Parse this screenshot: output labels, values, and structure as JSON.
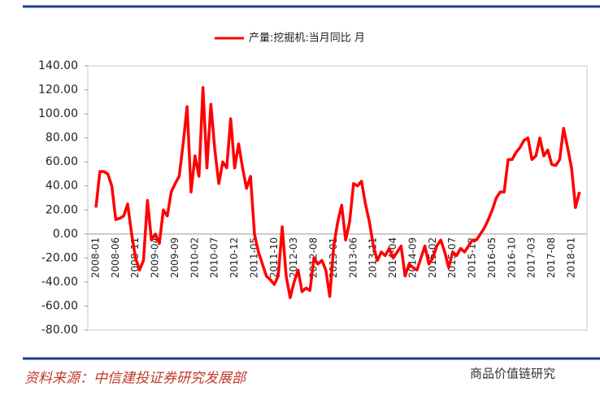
{
  "chart_data": {
    "type": "line",
    "legend": "产量:挖掘机:当月同比 月",
    "source": "资料来源：中信建投证券研究发展部",
    "watermark": "商品价值链研究",
    "color": "#ff0000",
    "categories": [
      "2008-01",
      null,
      null,
      null,
      null,
      "2008-06",
      null,
      null,
      null,
      null,
      "2008-11",
      null,
      null,
      null,
      null,
      "2009-04",
      null,
      null,
      null,
      null,
      "2009-09",
      null,
      null,
      null,
      null,
      "2010-02",
      null,
      null,
      null,
      null,
      "2010-07",
      null,
      null,
      null,
      null,
      "2010-12",
      null,
      null,
      null,
      null,
      "2011-05",
      null,
      null,
      null,
      null,
      "2011-10",
      null,
      null,
      null,
      null,
      "2012-03",
      null,
      null,
      null,
      null,
      "2012-08",
      null,
      null,
      null,
      null,
      "2013-01",
      null,
      null,
      null,
      null,
      "2013-06",
      null,
      null,
      null,
      null,
      "2013-11",
      null,
      null,
      null,
      null,
      "2014-04",
      null,
      null,
      null,
      null,
      "2014-09",
      null,
      null,
      null,
      null,
      "2015-02",
      null,
      null,
      null,
      null,
      "2015-07",
      null,
      null,
      null,
      null,
      "2015-12",
      null,
      null,
      null,
      null,
      "2016-05",
      null,
      null,
      null,
      null,
      "2016-10",
      null,
      null,
      null,
      null,
      "2017-03",
      null,
      null,
      null,
      null,
      "2017-08",
      null,
      null,
      null,
      null,
      "2018-01",
      null,
      null
    ],
    "values": [
      22,
      52,
      52,
      50,
      40,
      12,
      13,
      15,
      25,
      0,
      -20,
      -30,
      -22,
      28,
      -5,
      0,
      -8,
      20,
      15,
      35,
      42,
      48,
      75,
      106,
      35,
      65,
      48,
      122,
      55,
      108,
      70,
      42,
      60,
      55,
      96,
      55,
      75,
      55,
      38,
      48,
      0,
      -15,
      -25,
      -35,
      -38,
      -42,
      -35,
      6,
      -35,
      -53,
      -40,
      -30,
      -48,
      -45,
      -47,
      -20,
      -25,
      -22,
      -30,
      -52,
      -10,
      10,
      24,
      -5,
      10,
      42,
      40,
      44,
      25,
      10,
      -10,
      -22,
      -15,
      -18,
      -12,
      -20,
      -15,
      -10,
      -35,
      -25,
      -28,
      -30,
      -20,
      -10,
      -25,
      -20,
      -10,
      -5,
      -15,
      -28,
      -15,
      -18,
      -12,
      -15,
      -10,
      -5,
      -5,
      0,
      5,
      12,
      20,
      30,
      35,
      35,
      62,
      62,
      68,
      72,
      78,
      80,
      62,
      65,
      80,
      65,
      70,
      58,
      57,
      62,
      88,
      72,
      55,
      22,
      35
    ],
    "ylim": [
      -80,
      140
    ],
    "yticks": [
      {
        "value": 140,
        "label": "140.00"
      },
      {
        "value": 120,
        "label": "120.00"
      },
      {
        "value": 100,
        "label": "100.00"
      },
      {
        "value": 80,
        "label": "80.00"
      },
      {
        "value": 60,
        "label": "60.00"
      },
      {
        "value": 40,
        "label": "40.00"
      },
      {
        "value": 20,
        "label": "20.00"
      },
      {
        "value": 0,
        "label": "0.00"
      },
      {
        "value": -20,
        "label": "-20.00"
      },
      {
        "value": -40,
        "label": "-40.00"
      },
      {
        "value": -60,
        "label": "-60.00"
      },
      {
        "value": -80,
        "label": "-80.00"
      }
    ]
  }
}
